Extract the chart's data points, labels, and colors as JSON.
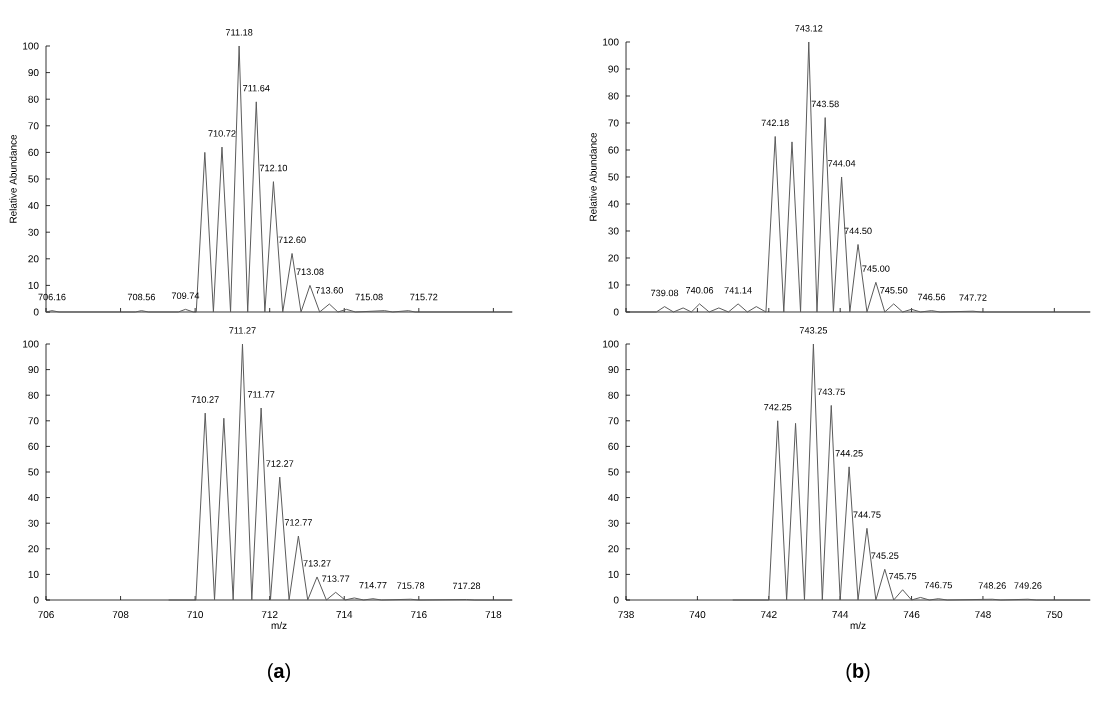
{
  "chart_data": [
    {
      "type": "line",
      "ylabel": "Relative Abundance",
      "color": "#5a5a5a",
      "xlim": [
        706,
        718.5
      ],
      "ylim": [
        0,
        100
      ],
      "yticks": [
        0,
        10,
        20,
        30,
        40,
        50,
        60,
        70,
        80,
        90,
        100
      ],
      "tick_labels": "y",
      "x": [
        706.0,
        706.16,
        706.35,
        708.4,
        708.56,
        708.75,
        709.55,
        709.74,
        709.95,
        710.03,
        710.26,
        710.49,
        710.72,
        710.95,
        711.18,
        711.41,
        711.64,
        711.87,
        712.1,
        712.35,
        712.6,
        712.84,
        713.08,
        713.34,
        713.6,
        713.83,
        714.06,
        714.3,
        715.08,
        715.3,
        715.72,
        715.9,
        718.5
      ],
      "values": [
        0,
        0.5,
        0,
        0,
        0.5,
        0,
        0,
        1,
        0,
        0,
        60,
        0,
        62,
        0,
        100,
        0,
        79,
        0,
        49,
        0,
        22,
        0,
        10,
        0,
        3,
        0,
        1,
        0,
        0.5,
        0,
        0.5,
        0,
        0
      ],
      "annotations": [
        {
          "text": "706.16",
          "x": 706.16,
          "y": 0.5
        },
        {
          "text": "708.56",
          "x": 708.56,
          "y": 0.5
        },
        {
          "text": "709.74",
          "x": 709.74,
          "y": 1
        },
        {
          "text": "710.72",
          "x": 710.72,
          "y": 62
        },
        {
          "text": "711.18",
          "x": 711.18,
          "y": 100
        },
        {
          "text": "711.64",
          "x": 711.64,
          "y": 79
        },
        {
          "text": "712.10",
          "x": 712.1,
          "y": 49
        },
        {
          "text": "712.60",
          "x": 712.6,
          "y": 22
        },
        {
          "text": "713.08",
          "x": 713.08,
          "y": 10
        },
        {
          "text": "713.60",
          "x": 713.6,
          "y": 3
        },
        {
          "text": "715.08",
          "x": 715.08,
          "y": 0.5
        },
        {
          "text": "715.72",
          "x": 715.72,
          "y": 0.5
        }
      ]
    },
    {
      "type": "line",
      "ylabel": "Relative Abundance",
      "color": "#5a5a5a",
      "xlim": [
        738,
        751
      ],
      "ylim": [
        0,
        100
      ],
      "yticks": [
        0,
        10,
        20,
        30,
        40,
        50,
        60,
        70,
        80,
        90,
        100
      ],
      "tick_labels": "y",
      "x": [
        738.0,
        738.85,
        739.08,
        739.33,
        739.6,
        739.83,
        740.06,
        740.33,
        740.6,
        740.87,
        741.14,
        741.4,
        741.65,
        741.92,
        742.18,
        742.42,
        742.65,
        742.89,
        743.12,
        743.35,
        743.58,
        743.81,
        744.04,
        744.27,
        744.5,
        744.75,
        745.0,
        745.25,
        745.5,
        745.75,
        746.0,
        746.25,
        746.56,
        746.8,
        747.72,
        747.95,
        751.0
      ],
      "values": [
        0,
        0,
        2,
        0,
        1.5,
        0,
        3,
        0,
        1.5,
        0,
        3,
        0,
        2,
        0,
        65,
        0,
        63,
        0,
        100,
        0,
        72,
        0,
        50,
        0,
        25,
        0,
        11,
        0,
        3,
        0,
        1,
        0,
        0.5,
        0,
        0.3,
        0,
        0
      ],
      "annotations": [
        {
          "text": "739.08",
          "x": 739.08,
          "y": 2
        },
        {
          "text": "740.06",
          "x": 740.06,
          "y": 3
        },
        {
          "text": "741.14",
          "x": 741.14,
          "y": 3
        },
        {
          "text": "742.18",
          "x": 742.18,
          "y": 65
        },
        {
          "text": "743.12",
          "x": 743.12,
          "y": 100
        },
        {
          "text": "743.58",
          "x": 743.58,
          "y": 72
        },
        {
          "text": "744.04",
          "x": 744.04,
          "y": 50
        },
        {
          "text": "744.50",
          "x": 744.5,
          "y": 25
        },
        {
          "text": "745.00",
          "x": 745.0,
          "y": 11
        },
        {
          "text": "745.50",
          "x": 745.5,
          "y": 3
        },
        {
          "text": "746.56",
          "x": 746.56,
          "y": 0.5
        },
        {
          "text": "747.72",
          "x": 747.72,
          "y": 0.3
        }
      ]
    },
    {
      "type": "line",
      "xlabel": "m/z",
      "color": "#5a5a5a",
      "xlim": [
        706,
        718.5
      ],
      "ylim": [
        0,
        100
      ],
      "xticks": [
        706,
        708,
        710,
        712,
        714,
        716,
        718
      ],
      "yticks": [
        0,
        10,
        20,
        30,
        40,
        50,
        60,
        70,
        80,
        90,
        100
      ],
      "x": [
        709.3,
        710.02,
        710.27,
        710.52,
        710.77,
        711.02,
        711.27,
        711.52,
        711.77,
        712.02,
        712.27,
        712.52,
        712.77,
        713.02,
        713.27,
        713.52,
        713.77,
        714.02,
        714.27,
        714.52,
        714.77,
        715.0,
        715.78,
        716.0,
        717.28,
        717.5,
        718.5
      ],
      "values": [
        0,
        0,
        73,
        0,
        71,
        0,
        100,
        0,
        75,
        0,
        48,
        0,
        25,
        0,
        9,
        0,
        3,
        0,
        0.8,
        0,
        0.5,
        0,
        0.3,
        0,
        0.2,
        0,
        0
      ],
      "annotations": [
        {
          "text": "710.27",
          "x": 710.27,
          "y": 73
        },
        {
          "text": "711.27",
          "x": 711.27,
          "y": 100
        },
        {
          "text": "711.77",
          "x": 711.77,
          "y": 75
        },
        {
          "text": "712.27",
          "x": 712.27,
          "y": 48
        },
        {
          "text": "712.77",
          "x": 712.77,
          "y": 25
        },
        {
          "text": "713.27",
          "x": 713.27,
          "y": 9
        },
        {
          "text": "713.77",
          "x": 713.77,
          "y": 3
        },
        {
          "text": "714.77",
          "x": 714.77,
          "y": 0.5
        },
        {
          "text": "715.78",
          "x": 715.78,
          "y": 0.3
        },
        {
          "text": "717.28",
          "x": 717.28,
          "y": 0.2
        },
        "(**a**)"
      ]
    },
    {
      "type": "line",
      "xlabel": "m/z",
      "color": "#5a5a5a",
      "xlim": [
        738,
        751
      ],
      "ylim": [
        0,
        100
      ],
      "xticks": [
        738,
        740,
        742,
        744,
        746,
        748,
        750
      ],
      "yticks": [
        0,
        10,
        20,
        30,
        40,
        50,
        60,
        70,
        80,
        90,
        100
      ],
      "x": [
        741.0,
        742.0,
        742.25,
        742.5,
        742.75,
        743.0,
        743.25,
        743.5,
        743.75,
        744.0,
        744.25,
        744.5,
        744.75,
        745.0,
        745.25,
        745.5,
        745.75,
        746.0,
        746.25,
        746.5,
        746.75,
        747.0,
        748.26,
        748.5,
        749.26,
        749.5,
        751.0
      ],
      "values": [
        0,
        0,
        70,
        0,
        69,
        0,
        100,
        0,
        76,
        0,
        52,
        0,
        28,
        0,
        12,
        0,
        4,
        0,
        1,
        0,
        0.5,
        0,
        0.3,
        0,
        0.3,
        0,
        0
      ],
      "annotations": [
        {
          "text": "742.25",
          "x": 742.25,
          "y": 70
        },
        {
          "text": "743.25",
          "x": 743.25,
          "y": 100
        },
        {
          "text": "743.75",
          "x": 743.75,
          "y": 76
        },
        {
          "text": "744.25",
          "x": 744.25,
          "y": 52
        },
        {
          "text": "744.75",
          "x": 744.75,
          "y": 28
        },
        {
          "text": "745.25",
          "x": 745.25,
          "y": 12
        },
        {
          "text": "745.75",
          "x": 745.75,
          "y": 4
        },
        {
          "text": "746.75",
          "x": 746.75,
          "y": 0.5
        },
        {
          "text": "748.26",
          "x": 748.26,
          "y": 0.3
        },
        {
          "text": "749.26",
          "x": 749.26,
          "y": 0.3
        },
        "(**b**)"
      ]
    }
  ]
}
